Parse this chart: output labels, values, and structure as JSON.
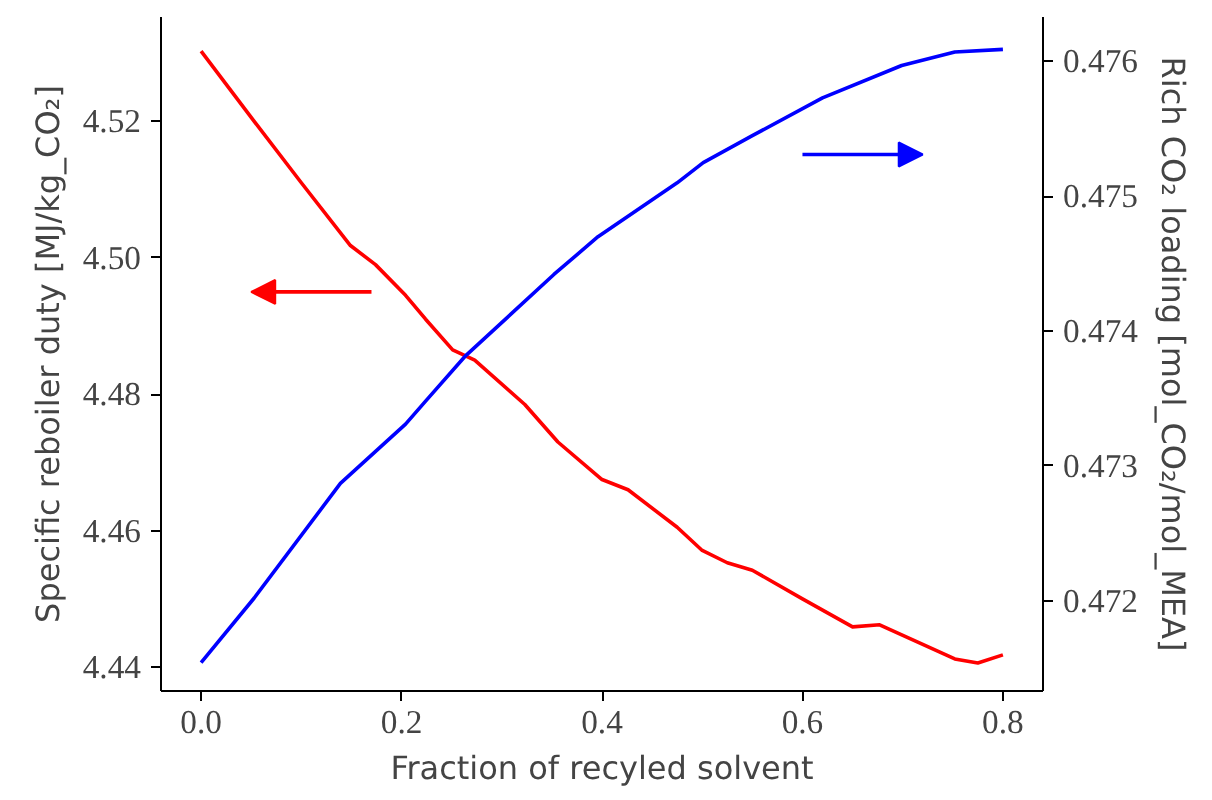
{
  "chart_data": {
    "type": "line",
    "xlabel": "Fraction of recyled solvent",
    "ylabel": "Specific reboiler duty [MJ/kg_CO₂]",
    "y2label": "Rich CO₂ loading [mol_CO₂/mol_MEA]",
    "xlim": [
      -0.04,
      0.84
    ],
    "xticks": [
      {
        "value": 0,
        "label": "0.0"
      },
      0.2,
      0.4,
      0.6,
      0.8
    ],
    "ylim": [
      4.4365,
      4.5353
    ],
    "yticks": [
      4.44,
      4.46,
      4.48,
      {
        "value": 4.5,
        "label": "4.50"
      },
      4.52
    ],
    "y2lim": [
      0.47133,
      0.47633
    ],
    "y2ticks": [
      0.472,
      0.473,
      0.474,
      0.475,
      0.476
    ],
    "grid": false,
    "series": [
      {
        "color": "#ff0000",
        "x": [
          0,
          0.053,
          0.1,
          0.149,
          0.174,
          0.204,
          0.224,
          0.251,
          0.273,
          0.323,
          0.356,
          0.4,
          0.426,
          0.475,
          0.5,
          0.525,
          0.55,
          0.6,
          0.65,
          0.677,
          0.752,
          0.775,
          0.8
        ],
        "values": [
          4.5303,
          4.52,
          4.511,
          4.5018,
          4.499,
          4.4945,
          4.491,
          4.4865,
          4.485,
          4.4785,
          4.473,
          4.4675,
          4.466,
          4.4605,
          4.4571,
          4.4553,
          4.4542,
          4.45,
          4.4459,
          4.4462,
          4.4412,
          4.4406,
          4.4418
        ]
      },
      {
        "color": "#0000ff",
        "axis": "y2",
        "x": [
          0,
          0.053,
          0.139,
          0.204,
          0.224,
          0.263,
          0.352,
          0.396,
          0.475,
          0.501,
          0.55,
          0.62,
          0.699,
          0.752,
          0.8
        ],
        "values": [
          0.47154,
          0.47202,
          0.47287,
          0.47331,
          0.47348,
          0.47381,
          0.47442,
          0.4747,
          0.4751,
          0.47525,
          0.47545,
          0.47573,
          0.47597,
          0.47607,
          0.47609
        ]
      }
    ]
  }
}
